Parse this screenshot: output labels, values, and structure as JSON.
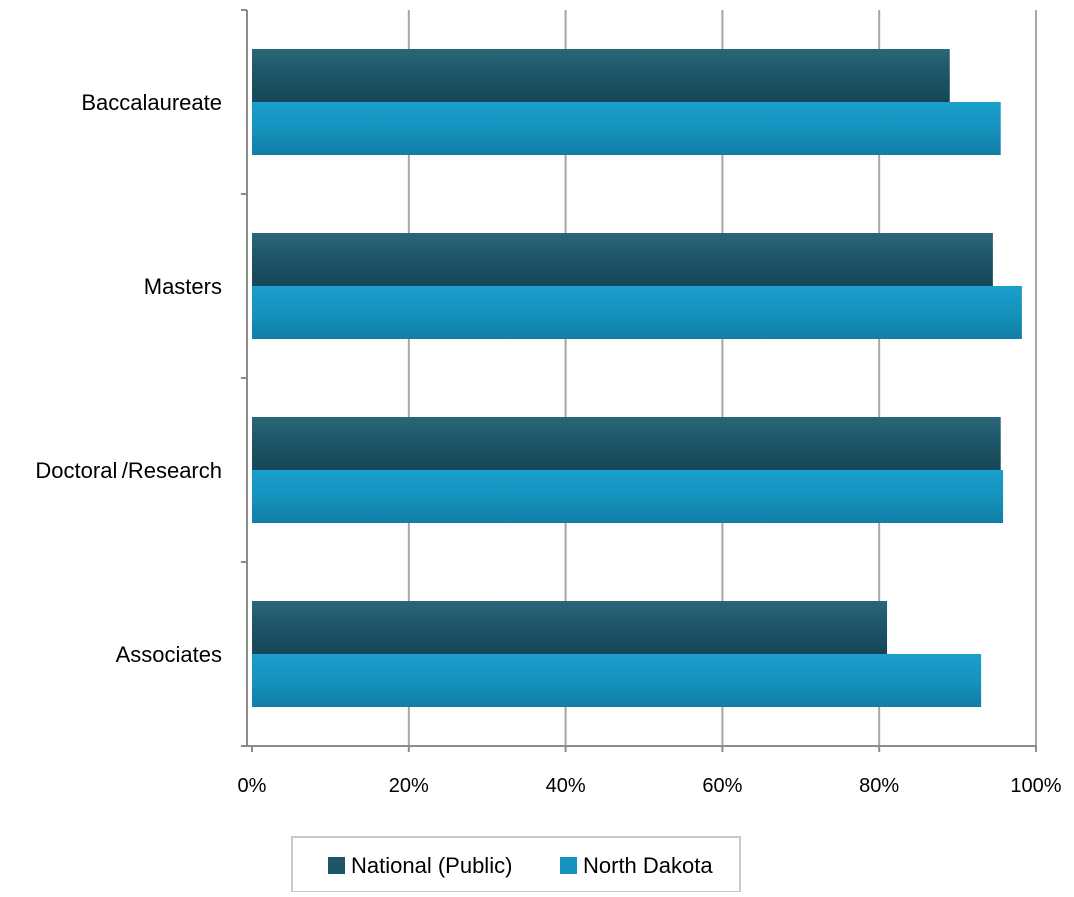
{
  "chart_data": {
    "type": "bar",
    "orientation": "horizontal",
    "categories": [
      "Baccalaureate",
      "Masters",
      "Doctoral /Research",
      "Associates"
    ],
    "series": [
      {
        "name": "National (Public)",
        "values": [
          89,
          94.5,
          95.5,
          81
        ],
        "color": "#1d5467"
      },
      {
        "name": "North Dakota",
        "values": [
          95.5,
          98.2,
          95.8,
          93
        ],
        "color": "#1592bd"
      }
    ],
    "x_ticks": [
      "0%",
      "20%",
      "40%",
      "60%",
      "80%",
      "100%"
    ],
    "xlim": [
      0,
      100
    ],
    "grid": true,
    "legend": "bottom",
    "title": "",
    "xlabel": "",
    "ylabel": ""
  }
}
